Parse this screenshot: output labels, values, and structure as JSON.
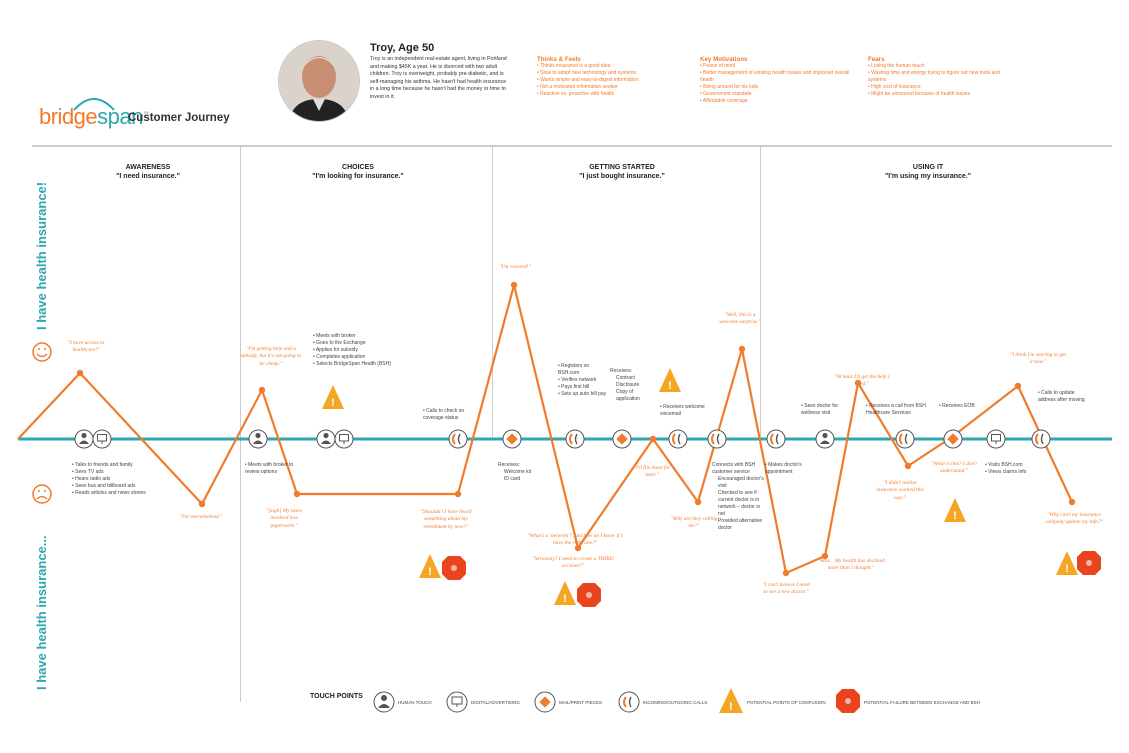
{
  "brand": {
    "name_part1": "bridge",
    "name_part2": "span",
    "trademark": "™",
    "title": "Customer Journey"
  },
  "persona": {
    "name": "Troy, Age 50",
    "bio": "Troy is an independent real-estate agent, living in Portland and making $45K a year. He is divorced with two adult children. Troy is overweight, probably pre-diabetic, and is self-managing his asthma. He hasn't had health insurance in a long time because he hasn't had the money or time to invest in it."
  },
  "thinks_feels": {
    "title": "Thinks & Feels",
    "items": [
      "Thinks insurance is a good idea",
      "Slow to adopt new technology and systems",
      "Wants simple and easy-to-digest information",
      "Not a motivated information seeker",
      "Reactive vs. proactive with health"
    ]
  },
  "motivations": {
    "title": "Key Motivations",
    "items": [
      "Peace of mind",
      "Better management of existing health issues and improved overall health",
      "Being around for his kids",
      "Government mandate",
      "Affordable coverage"
    ]
  },
  "fears": {
    "title": "Fears",
    "items": [
      "Losing the human touch",
      "Wasting time and energy trying to figure out new tools and systems",
      "High cost of insurance",
      "Might be uninsured because of health issues"
    ]
  },
  "side_labels": {
    "top": "I have health insurance!",
    "bottom": "I have health insurance..."
  },
  "phases": [
    {
      "name": "AWARENESS",
      "quote": "\"I need insurance.\""
    },
    {
      "name": "CHOICES",
      "quote": "\"I'm looking for insurance.\""
    },
    {
      "name": "GETTING STARTED",
      "quote": "\"I just bought insurance.\""
    },
    {
      "name": "USING IT",
      "quote": "\"I'm using my insurance.\""
    }
  ],
  "notes": {
    "n1": [
      "Talks to friends and family",
      "Sees TV ads",
      "Hears radio ads",
      "Sees bus and billboard ads",
      "Reads articles and news stories"
    ],
    "n2": "Meets with broker to review options",
    "n3": [
      "Meets with broker",
      "Goes to the Exchange",
      "Applies for subsidy",
      "Completes application",
      "Selects BridgeSpan Health (BSH)"
    ],
    "n4": "Calls to check on coverage status",
    "n5_head": "Receives:",
    "n5": [
      "Welcome kit",
      "ID card"
    ],
    "n6": [
      "Registers on BSH.com",
      "Verifies network",
      "Pays first bill",
      "Sets up auto bill pay"
    ],
    "n7_head": "Receives:",
    "n7": [
      "Contract",
      "Disclosure",
      "Copy of application"
    ],
    "n8": "Receives welcome voicemail",
    "n9_head": "Connects with BSH customer service",
    "n9": [
      "Encouraged doctor's visit",
      "Checked to see if current doctor is in network – doctor is not",
      "Provided alternative doctor"
    ],
    "n10": "Makes doctor's appointment",
    "n11": "Sees doctor for wellness visit",
    "n12": "Receives a call from BSH Healthcare Services",
    "n13": "Receives EOB",
    "n14": [
      "Visits BSH.com",
      "Views claims info"
    ],
    "n15": "Calls to update address after moving"
  },
  "quotes": {
    "q1": "\"I have access to healthcare!\"",
    "q2": "\"I'm overwhelmed.\"",
    "q3": "\"I'm getting help and a subsidy, but it's not going to be cheap.\"",
    "q4": "\"[sigh] My taxes involved less paperwork.\"",
    "q5": "\"Shouldn't I have heard something about my enrollment by now?\"",
    "q6": "\"I'm covered!\"",
    "q7": "\"What's a 'network'? And how do I know if I have the right one?\"",
    "q8": "\"Seriously? I need to create a THIRD account?\"",
    "q9": "\"I'll file these for later.\"",
    "q10": "\"Why are they calling me?\"",
    "q11": "\"Well, this is a welcome surprise.\"",
    "q12": "\"I can't believe I need to see a new doctor.\"",
    "q13": "\"Wow... My health has declined more than I thought.\"",
    "q14": "\"At least I'll get the help I need.\"",
    "q15": "\"I didn't realize insurance worked this way.\"",
    "q16": "\"What is this? I don't understand.\"",
    "q17": "\"I think I'm starting to get it now.\"",
    "q18": "\"Why can't my insurance company update my info?\""
  },
  "legend": {
    "title": "TOUCH POINTS",
    "items": [
      "HUMAN TOUCH",
      "DIGITAL/ADVERTISING",
      "MAIL/PRINT PIECES",
      "INCOMING/OUTGOING CALLS",
      "POTENTIAL POINTS OF CONFUSION",
      "POTENTIAL FAILURE BETWEEN EXCHANGE AND BSH"
    ]
  },
  "colors": {
    "accent": "#f07b2b",
    "teal": "#2ea7b3",
    "failure": "#e8451e"
  }
}
